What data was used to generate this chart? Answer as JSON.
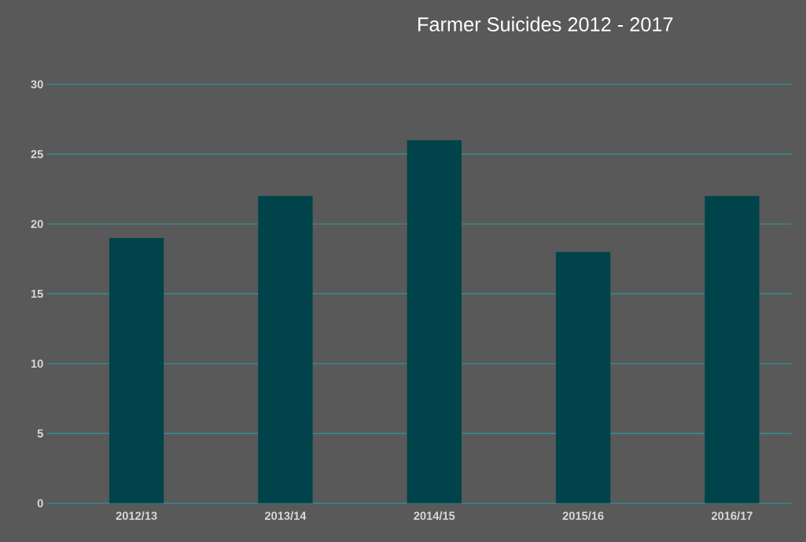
{
  "chart_data": {
    "type": "bar",
    "title": "Farmer Suicides 2012 - 2017",
    "categories": [
      "2012/13",
      "2013/14",
      "2014/15",
      "2015/16",
      "2016/17"
    ],
    "values": [
      19,
      22,
      26,
      18,
      22
    ],
    "color": "#00434a",
    "ylim": [
      0,
      30
    ],
    "yticks": [
      0,
      5,
      10,
      15,
      20,
      25,
      30
    ],
    "grid": "y"
  }
}
